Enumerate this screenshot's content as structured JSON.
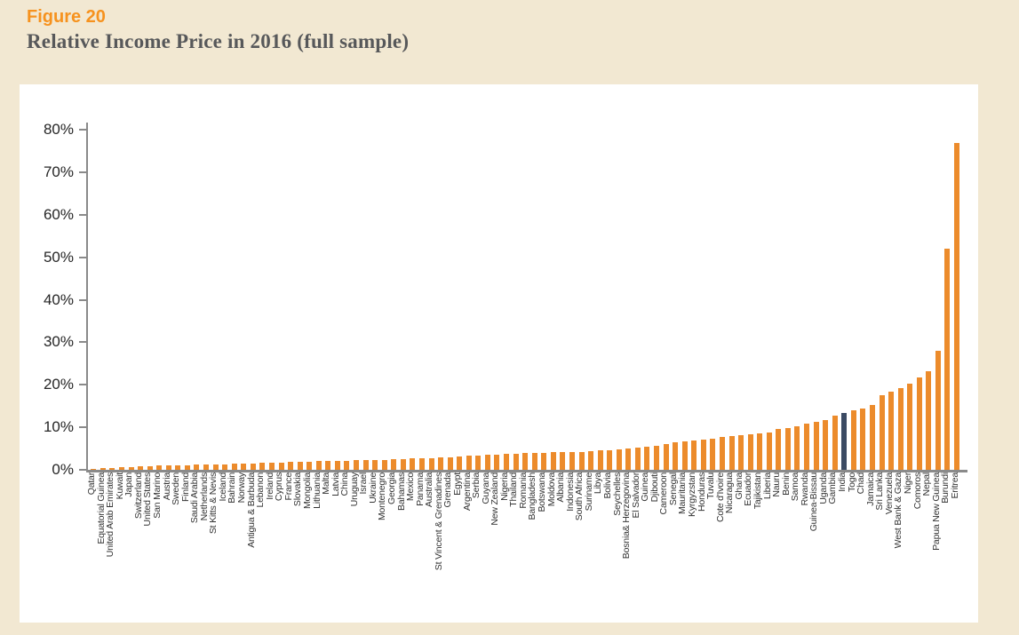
{
  "header": {
    "figure_label": "Figure 20",
    "title": "Relative Income Price in 2016 (full sample)"
  },
  "colors": {
    "page_bg": "#F2E8D2",
    "panel_bg": "#FFFFFF",
    "bar": "#EC8B2B",
    "highlight_bar": "#3B4A63",
    "axis": "#8A8A8A",
    "figure_label_text": "#F6921E",
    "title_text": "#57585A"
  },
  "chart_data": {
    "type": "bar",
    "title": "Relative Income Price in 2016 (full sample)",
    "xlabel": "",
    "ylabel": "",
    "ylim": [
      0,
      80
    ],
    "ytick_labels": [
      "0%",
      "10%",
      "20%",
      "30%",
      "40%",
      "50%",
      "60%",
      "70%",
      "80%"
    ],
    "grid": false,
    "legend": false,
    "highlight_category": "India",
    "categories": [
      "Qatar",
      "Equatorial Guinea",
      "United Arab Emirates",
      "Kuwait",
      "Japan",
      "Switzerland",
      "United States",
      "San Marino",
      "Austria",
      "Sweden",
      "Finland",
      "Saudi Arabia",
      "Netherlands",
      "St Kitts & Nevis",
      "Iceland",
      "Bahrain",
      "Norway",
      "Antigua & Barbuda",
      "Lebanon",
      "Ireland",
      "Cyprus",
      "France",
      "Slovakia",
      "Mongolia",
      "Lithuania",
      "Malta",
      "Latvia",
      "China",
      "Uruguay",
      "Israel",
      "Ukraine",
      "Montenegro",
      "Georgia",
      "Bahamas",
      "Mexico",
      "Panama",
      "Australia",
      "St Vincent & Grenadines",
      "Grenada",
      "Egypt",
      "Argentina",
      "Serbia",
      "Guyana",
      "New Zealand",
      "Nigeria",
      "Thailand",
      "Romania",
      "Bangladesh",
      "Botswana",
      "Moldova",
      "Albania",
      "Indonesia",
      "South Africa",
      "Suriname",
      "Libya",
      "Bolivia",
      "Seychelles",
      "Bosnia& Herzegovina",
      "El Salvador",
      "Guinea",
      "Djibouti",
      "Cameroon",
      "Senegal",
      "Mauritania",
      "Kyrgyzstan",
      "Honduras",
      "Tuvalu",
      "Cote d'Ivoire",
      "Nicaragua",
      "Ghana",
      "Ecuador",
      "Tajikistan",
      "Liberia",
      "Nauru",
      "Benin",
      "Samoa",
      "Rwanda",
      "Guinea-Bissau",
      "Uganda",
      "Gambia",
      "India",
      "Togo",
      "Chad",
      "Jamaica",
      "Sri Lanka",
      "Venezuela",
      "West Bank & Gaza",
      "Niger",
      "Comoros",
      "Nepal",
      "Papua New Guinea",
      "Burundi",
      "Eritrea"
    ],
    "values": [
      0.3,
      0.4,
      0.5,
      0.6,
      0.7,
      0.8,
      0.9,
      1.0,
      1.0,
      1.1,
      1.1,
      1.2,
      1.2,
      1.3,
      1.3,
      1.4,
      1.5,
      1.5,
      1.6,
      1.6,
      1.7,
      1.8,
      1.8,
      1.9,
      2.0,
      2.0,
      2.1,
      2.1,
      2.2,
      2.3,
      2.3,
      2.4,
      2.5,
      2.6,
      2.7,
      2.8,
      2.8,
      2.9,
      3.0,
      3.2,
      3.3,
      3.4,
      3.5,
      3.6,
      3.7,
      3.8,
      3.9,
      4.0,
      4.0,
      4.1,
      4.1,
      4.2,
      4.2,
      4.3,
      4.5,
      4.7,
      4.9,
      5.1,
      5.3,
      5.5,
      5.7,
      6.0,
      6.4,
      6.7,
      6.9,
      7.1,
      7.4,
      7.7,
      7.9,
      8.1,
      8.3,
      8.6,
      8.8,
      9.6,
      9.9,
      10.3,
      10.9,
      11.2,
      11.7,
      12.7,
      13.4,
      13.9,
      14.4,
      15.2,
      17.5,
      18.3,
      19.3,
      20.3,
      21.8,
      23.2,
      28.0,
      52.0,
      77.0
    ]
  }
}
